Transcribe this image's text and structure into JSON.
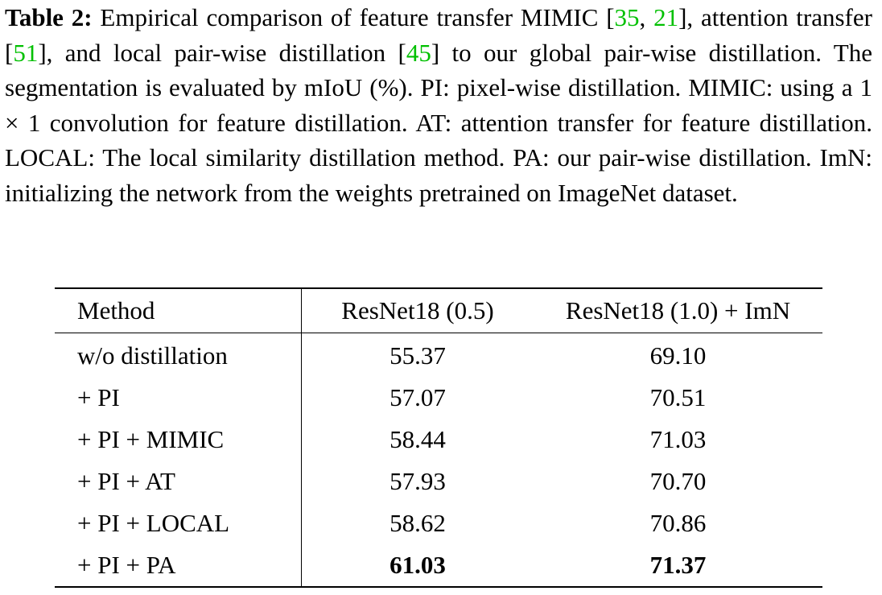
{
  "caption": {
    "label": "Table 2:",
    "parts": [
      {
        "text": " Empirical comparison of feature transfer MIMIC [",
        "cite": false
      },
      {
        "text": "35",
        "cite": true
      },
      {
        "text": ", ",
        "cite": false
      },
      {
        "text": "21",
        "cite": true
      },
      {
        "text": "], attention transfer [",
        "cite": false
      },
      {
        "text": "51",
        "cite": true
      },
      {
        "text": "], and local pair-wise distillation [",
        "cite": false
      },
      {
        "text": "45",
        "cite": true
      },
      {
        "text": "] to our global pair-wise distillation. The segmentation is evaluated by mIoU (%). PI: pixel-wise distillation. MIMIC: using a 1 × 1 convolution for feature distillation. AT: attention transfer for feature distillation. LOCAL: The local similarity distillation method. PA: our pair-wise distillation. ImN: initializing the network from the weights pretrained on ImageNet dataset.",
        "cite": false
      }
    ]
  },
  "table": {
    "headers": [
      "Method",
      "ResNet18 (0.5)",
      "ResNet18 (1.0) + ImN"
    ],
    "rows": [
      {
        "method": "w/o distillation",
        "r05": "55.37",
        "r10": "69.10",
        "best": false
      },
      {
        "method": "+ PI",
        "r05": "57.07",
        "r10": "70.51",
        "best": false
      },
      {
        "method": "+ PI + MIMIC",
        "r05": "58.44",
        "r10": "71.03",
        "best": false
      },
      {
        "method": "+ PI + AT",
        "r05": "57.93",
        "r10": "70.70",
        "best": false
      },
      {
        "method": "+ PI + LOCAL",
        "r05": "58.62",
        "r10": "70.86",
        "best": false
      },
      {
        "method": "+ PI + PA",
        "r05": "61.03",
        "r10": "71.37",
        "best": true
      }
    ]
  },
  "colors": {
    "citation": "#00c000",
    "text": "#000000"
  }
}
